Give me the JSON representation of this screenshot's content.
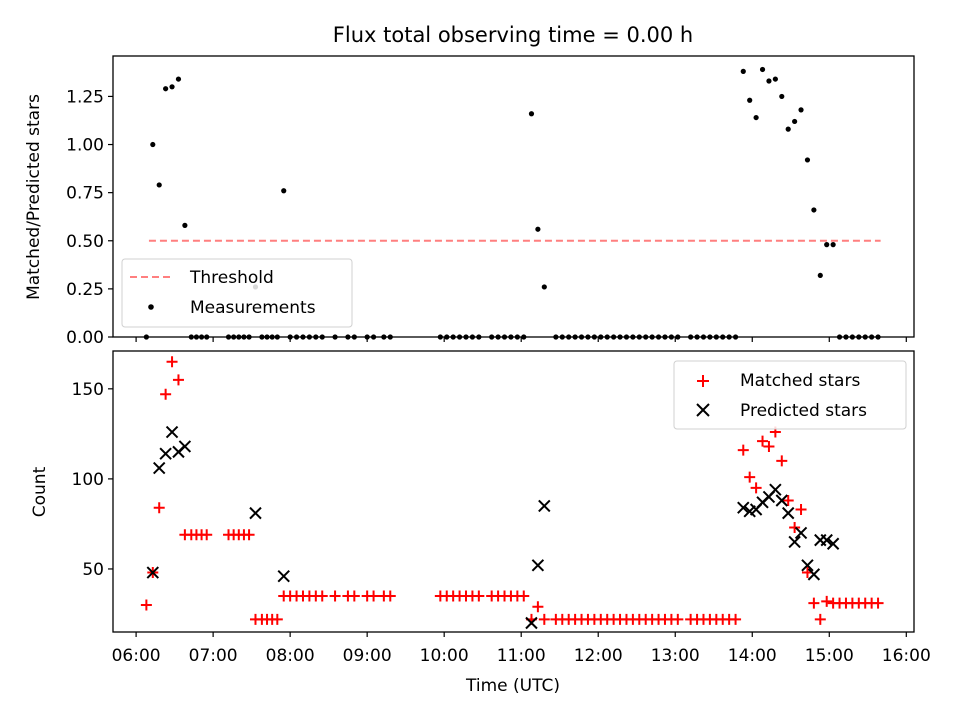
{
  "chart_data": [
    {
      "type": "scatter",
      "title": "Flux total observing time = 0.00 h",
      "ylabel": "Matched/Predicted stars",
      "xlabel": "",
      "xlim": [
        "05:42",
        "16:06"
      ],
      "ylim": [
        0.0,
        1.46
      ],
      "yticks": [
        0.0,
        0.25,
        0.5,
        0.75,
        1.0,
        1.25
      ],
      "ytick_labels": [
        "0.00",
        "0.25",
        "0.50",
        "0.75",
        "1.00",
        "1.25"
      ],
      "grid": false,
      "legend": {
        "placement": "lower-left",
        "entries": [
          "Threshold",
          "Measurements"
        ]
      },
      "threshold": {
        "name": "Threshold",
        "value": 0.5,
        "x_start": "06:10",
        "x_end": "15:40",
        "color": "#ff7f7f",
        "style": "dashed"
      },
      "series": [
        {
          "name": "Measurements",
          "marker": "dot",
          "color": "#000000",
          "points": [
            [
              "06:08",
              0.0
            ],
            [
              "06:13",
              1.0
            ],
            [
              "06:18",
              0.79
            ],
            [
              "06:23",
              1.29
            ],
            [
              "06:28",
              1.3
            ],
            [
              "06:33",
              1.34
            ],
            [
              "06:38",
              0.58
            ],
            [
              "06:43",
              0.0
            ],
            [
              "06:47",
              0.0
            ],
            [
              "06:51",
              0.0
            ],
            [
              "06:55",
              0.0
            ],
            [
              "07:12",
              0.0
            ],
            [
              "07:16",
              0.0
            ],
            [
              "07:20",
              0.0
            ],
            [
              "07:24",
              0.0
            ],
            [
              "07:28",
              0.0
            ],
            [
              "07:33",
              0.26
            ],
            [
              "07:38",
              0.0
            ],
            [
              "07:42",
              0.0
            ],
            [
              "07:46",
              0.0
            ],
            [
              "07:50",
              0.0
            ],
            [
              "07:55",
              0.76
            ],
            [
              "08:00",
              0.0
            ],
            [
              "08:05",
              0.0
            ],
            [
              "08:10",
              0.0
            ],
            [
              "08:15",
              0.0
            ],
            [
              "08:20",
              0.0
            ],
            [
              "08:25",
              0.0
            ],
            [
              "08:35",
              0.0
            ],
            [
              "08:45",
              0.0
            ],
            [
              "08:50",
              0.0
            ],
            [
              "09:00",
              0.0
            ],
            [
              "09:05",
              0.0
            ],
            [
              "09:13",
              0.0
            ],
            [
              "09:18",
              0.0
            ],
            [
              "09:57",
              0.0
            ],
            [
              "10:02",
              0.0
            ],
            [
              "10:07",
              0.0
            ],
            [
              "10:12",
              0.0
            ],
            [
              "10:17",
              0.0
            ],
            [
              "10:22",
              0.0
            ],
            [
              "10:27",
              0.0
            ],
            [
              "10:37",
              0.0
            ],
            [
              "10:42",
              0.0
            ],
            [
              "10:47",
              0.0
            ],
            [
              "10:52",
              0.0
            ],
            [
              "10:57",
              0.0
            ],
            [
              "11:02",
              0.0
            ],
            [
              "11:08",
              1.16
            ],
            [
              "11:13",
              0.56
            ],
            [
              "11:18",
              0.26
            ],
            [
              "11:27",
              0.0
            ],
            [
              "11:32",
              0.0
            ],
            [
              "11:37",
              0.0
            ],
            [
              "11:42",
              0.0
            ],
            [
              "11:47",
              0.0
            ],
            [
              "11:52",
              0.0
            ],
            [
              "11:57",
              0.0
            ],
            [
              "12:02",
              0.0
            ],
            [
              "12:07",
              0.0
            ],
            [
              "12:12",
              0.0
            ],
            [
              "12:17",
              0.0
            ],
            [
              "12:22",
              0.0
            ],
            [
              "12:27",
              0.0
            ],
            [
              "12:32",
              0.0
            ],
            [
              "12:37",
              0.0
            ],
            [
              "12:42",
              0.0
            ],
            [
              "12:47",
              0.0
            ],
            [
              "12:52",
              0.0
            ],
            [
              "12:57",
              0.0
            ],
            [
              "13:02",
              0.0
            ],
            [
              "13:12",
              0.0
            ],
            [
              "13:17",
              0.0
            ],
            [
              "13:22",
              0.0
            ],
            [
              "13:27",
              0.0
            ],
            [
              "13:32",
              0.0
            ],
            [
              "13:37",
              0.0
            ],
            [
              "13:42",
              0.0
            ],
            [
              "13:47",
              0.0
            ],
            [
              "13:53",
              1.38
            ],
            [
              "13:58",
              1.23
            ],
            [
              "14:03",
              1.14
            ],
            [
              "14:08",
              1.39
            ],
            [
              "14:13",
              1.33
            ],
            [
              "14:18",
              1.34
            ],
            [
              "14:23",
              1.25
            ],
            [
              "14:28",
              1.08
            ],
            [
              "14:33",
              1.12
            ],
            [
              "14:38",
              1.18
            ],
            [
              "14:43",
              0.92
            ],
            [
              "14:48",
              0.66
            ],
            [
              "14:53",
              0.32
            ],
            [
              "14:58",
              0.48
            ],
            [
              "15:03",
              0.48
            ],
            [
              "15:08",
              0.0
            ],
            [
              "15:13",
              0.0
            ],
            [
              "15:18",
              0.0
            ],
            [
              "15:23",
              0.0
            ],
            [
              "15:28",
              0.0
            ],
            [
              "15:33",
              0.0
            ],
            [
              "15:38",
              0.0
            ]
          ]
        }
      ]
    },
    {
      "type": "scatter",
      "title": "",
      "ylabel": "Count",
      "xlabel": "Time (UTC)",
      "xlim": [
        "05:42",
        "16:06"
      ],
      "ylim": [
        15,
        171
      ],
      "yticks": [
        50,
        100,
        150
      ],
      "ytick_labels": [
        "50",
        "100",
        "150"
      ],
      "xticks": [
        "06:00",
        "07:00",
        "08:00",
        "09:00",
        "10:00",
        "11:00",
        "12:00",
        "13:00",
        "14:00",
        "15:00",
        "16:00"
      ],
      "grid": false,
      "legend": {
        "placement": "top-right",
        "entries": [
          "Matched stars",
          "Predicted stars"
        ]
      },
      "series": [
        {
          "name": "Matched stars",
          "marker": "plus",
          "color": "#ff0000",
          "points": [
            [
              "06:08",
              30
            ],
            [
              "06:13",
              48
            ],
            [
              "06:18",
              84
            ],
            [
              "06:23",
              147
            ],
            [
              "06:28",
              165
            ],
            [
              "06:33",
              155
            ],
            [
              "06:38",
              69
            ],
            [
              "06:43",
              69
            ],
            [
              "06:47",
              69
            ],
            [
              "06:51",
              69
            ],
            [
              "06:55",
              69
            ],
            [
              "07:12",
              69
            ],
            [
              "07:16",
              69
            ],
            [
              "07:20",
              69
            ],
            [
              "07:24",
              69
            ],
            [
              "07:28",
              69
            ],
            [
              "07:33",
              22
            ],
            [
              "07:38",
              22
            ],
            [
              "07:42",
              22
            ],
            [
              "07:46",
              22
            ],
            [
              "07:50",
              22
            ],
            [
              "07:55",
              35
            ],
            [
              "08:00",
              35
            ],
            [
              "08:05",
              35
            ],
            [
              "08:10",
              35
            ],
            [
              "08:15",
              35
            ],
            [
              "08:20",
              35
            ],
            [
              "08:25",
              35
            ],
            [
              "08:35",
              35
            ],
            [
              "08:45",
              35
            ],
            [
              "08:50",
              35
            ],
            [
              "09:00",
              35
            ],
            [
              "09:05",
              35
            ],
            [
              "09:13",
              35
            ],
            [
              "09:18",
              35
            ],
            [
              "09:57",
              35
            ],
            [
              "10:02",
              35
            ],
            [
              "10:07",
              35
            ],
            [
              "10:12",
              35
            ],
            [
              "10:17",
              35
            ],
            [
              "10:22",
              35
            ],
            [
              "10:27",
              35
            ],
            [
              "10:37",
              35
            ],
            [
              "10:42",
              35
            ],
            [
              "10:47",
              35
            ],
            [
              "10:52",
              35
            ],
            [
              "10:57",
              35
            ],
            [
              "11:02",
              35
            ],
            [
              "11:08",
              22
            ],
            [
              "11:13",
              29
            ],
            [
              "11:18",
              22
            ],
            [
              "11:27",
              22
            ],
            [
              "11:32",
              22
            ],
            [
              "11:37",
              22
            ],
            [
              "11:42",
              22
            ],
            [
              "11:47",
              22
            ],
            [
              "11:52",
              22
            ],
            [
              "11:57",
              22
            ],
            [
              "12:02",
              22
            ],
            [
              "12:07",
              22
            ],
            [
              "12:12",
              22
            ],
            [
              "12:17",
              22
            ],
            [
              "12:22",
              22
            ],
            [
              "12:27",
              22
            ],
            [
              "12:32",
              22
            ],
            [
              "12:37",
              22
            ],
            [
              "12:42",
              22
            ],
            [
              "12:47",
              22
            ],
            [
              "12:52",
              22
            ],
            [
              "12:57",
              22
            ],
            [
              "13:02",
              22
            ],
            [
              "13:12",
              22
            ],
            [
              "13:17",
              22
            ],
            [
              "13:22",
              22
            ],
            [
              "13:27",
              22
            ],
            [
              "13:32",
              22
            ],
            [
              "13:37",
              22
            ],
            [
              "13:42",
              22
            ],
            [
              "13:47",
              22
            ],
            [
              "13:53",
              116
            ],
            [
              "13:58",
              101
            ],
            [
              "14:03",
              95
            ],
            [
              "14:08",
              121
            ],
            [
              "14:13",
              118
            ],
            [
              "14:18",
              126
            ],
            [
              "14:23",
              110
            ],
            [
              "14:28",
              88
            ],
            [
              "14:33",
              73
            ],
            [
              "14:38",
              83
            ],
            [
              "14:43",
              48
            ],
            [
              "14:48",
              31
            ],
            [
              "14:53",
              22
            ],
            [
              "14:58",
              32
            ],
            [
              "15:03",
              31
            ],
            [
              "15:08",
              31
            ],
            [
              "15:13",
              31
            ],
            [
              "15:18",
              31
            ],
            [
              "15:23",
              31
            ],
            [
              "15:28",
              31
            ],
            [
              "15:33",
              31
            ],
            [
              "15:38",
              31
            ]
          ]
        },
        {
          "name": "Predicted stars",
          "marker": "x",
          "color": "#000000",
          "points": [
            [
              "06:13",
              48
            ],
            [
              "06:18",
              106
            ],
            [
              "06:23",
              114
            ],
            [
              "06:28",
              126
            ],
            [
              "06:33",
              115
            ],
            [
              "06:38",
              118
            ],
            [
              "07:33",
              81
            ],
            [
              "07:55",
              46
            ],
            [
              "11:08",
              20
            ],
            [
              "11:13",
              52
            ],
            [
              "11:18",
              85
            ],
            [
              "13:53",
              84
            ],
            [
              "13:58",
              82
            ],
            [
              "14:03",
              83
            ],
            [
              "14:08",
              87
            ],
            [
              "14:13",
              90
            ],
            [
              "14:18",
              94
            ],
            [
              "14:23",
              88
            ],
            [
              "14:28",
              81
            ],
            [
              "14:33",
              65
            ],
            [
              "14:38",
              70
            ],
            [
              "14:43",
              52
            ],
            [
              "14:48",
              47
            ],
            [
              "14:53",
              66
            ],
            [
              "14:58",
              66
            ],
            [
              "15:03",
              64
            ]
          ]
        }
      ]
    }
  ]
}
